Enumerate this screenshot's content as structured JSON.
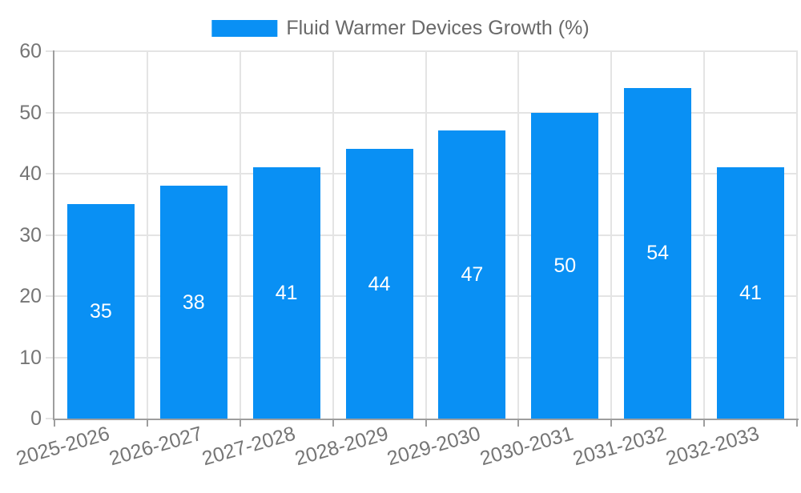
{
  "chart_data": {
    "type": "bar",
    "title": "Fluid Warmer Devices Growth (%)",
    "categories": [
      "2025-2026",
      "2026-2027",
      "2027-2028",
      "2028-2029",
      "2029-2030",
      "2030-2031",
      "2031-2032",
      "2032-2033"
    ],
    "values": [
      35,
      38,
      41,
      44,
      47,
      50,
      54,
      41
    ],
    "xlabel": "",
    "ylabel": "",
    "ylim": [
      0,
      60
    ],
    "yticks": [
      0,
      10,
      20,
      30,
      40,
      50,
      60
    ],
    "grid": true,
    "bar_value_labels": true,
    "x_label_rotation_deg": -16,
    "legend": {
      "label": "Fluid Warmer Devices Growth (%)",
      "position": "top-center"
    }
  },
  "colors": {
    "bar": "#0990f4",
    "bar_label_text": "#ffffff",
    "axis_line": "#9e9e9e",
    "gridline": "#e4e4e4",
    "tick_text": "#757575",
    "legend_text": "#696969",
    "background": "#ffffff"
  }
}
